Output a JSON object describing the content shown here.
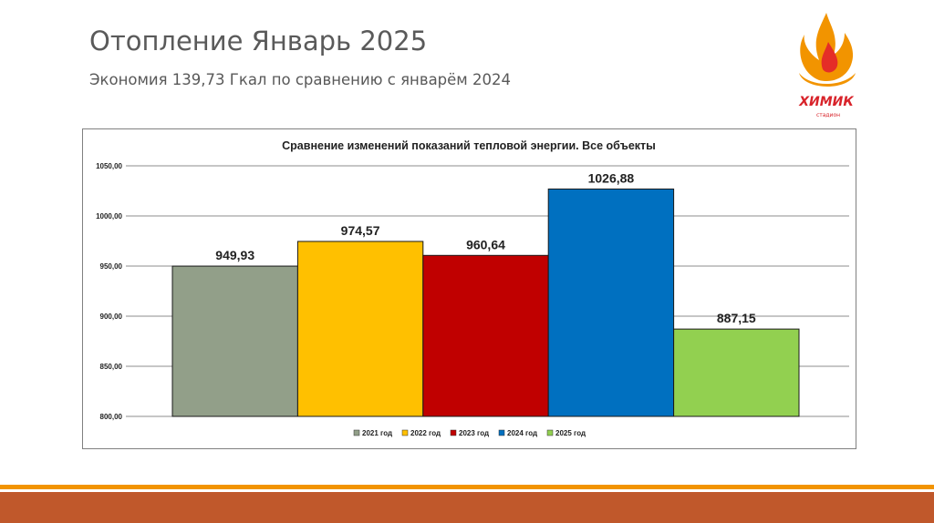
{
  "slide": {
    "title": "Отопление Январь 2025",
    "subtitle": "Экономия 139,73 Гкал по сравнению с январём 2024"
  },
  "logo": {
    "text": "ХИМИК",
    "subtext": "стадион",
    "icon": "flame-icon",
    "colors": {
      "flame": "#f29400",
      "flame_inner": "#e52d27",
      "text": "#d8232a"
    }
  },
  "footer": {
    "colors": {
      "thin": "#f29400",
      "band": "#c0582b"
    }
  },
  "chart_data": {
    "type": "bar",
    "title": "Сравнение изменений показаний тепловой энергии. Все объекты",
    "xlabel": "",
    "ylabel": "",
    "ylim": [
      800,
      1050
    ],
    "yticks": [
      800,
      850,
      900,
      950,
      1000,
      1050
    ],
    "ytick_labels": [
      "800,00",
      "850,00",
      "900,00",
      "950,00",
      "1000,00",
      "1050,00"
    ],
    "grid": true,
    "legend_position": "bottom",
    "series": [
      {
        "name": "2021 год",
        "value": 949.93,
        "label": "949,93",
        "color": "#929f89"
      },
      {
        "name": "2022 год",
        "value": 974.57,
        "label": "974,57",
        "color": "#ffc000"
      },
      {
        "name": "2023 год",
        "value": 960.64,
        "label": "960,64",
        "color": "#c00000"
      },
      {
        "name": "2024 год",
        "value": 1026.88,
        "label": "1026,88",
        "color": "#0070c0"
      },
      {
        "name": "2025 год",
        "value": 887.15,
        "label": "887,15",
        "color": "#92d050"
      }
    ]
  }
}
